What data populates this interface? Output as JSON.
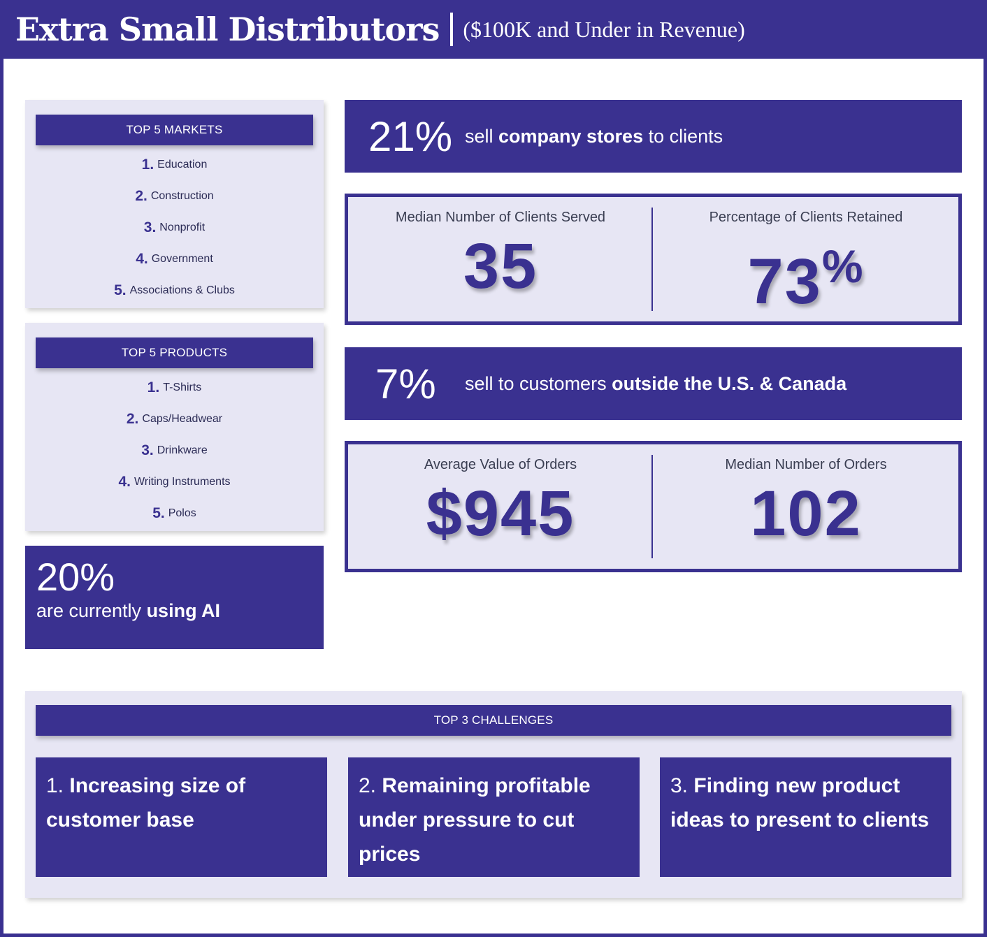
{
  "header": {
    "title": "Extra Small Distributors",
    "subtitle": "($100K and Under in Revenue)"
  },
  "markets": {
    "heading": "TOP 5 MARKETS",
    "items": [
      {
        "num": "1.",
        "label": "Education"
      },
      {
        "num": "2.",
        "label": "Construction"
      },
      {
        "num": "3.",
        "label": "Nonprofit"
      },
      {
        "num": "4.",
        "label": "Government"
      },
      {
        "num": "5.",
        "label": "Associations & Clubs"
      }
    ]
  },
  "products": {
    "heading": "TOP 5 PRODUCTS",
    "items": [
      {
        "num": "1.",
        "label": "T-Shirts"
      },
      {
        "num": "2.",
        "label": "Caps/Headwear"
      },
      {
        "num": "3.",
        "label": "Drinkware"
      },
      {
        "num": "4.",
        "label": "Writing Instruments"
      },
      {
        "num": "5.",
        "label": "Polos"
      }
    ]
  },
  "ai": {
    "percent": "20%",
    "text_pre": "are currently ",
    "text_bold": "using AI"
  },
  "company_stores": {
    "percent": "21%",
    "text_pre": "sell ",
    "text_bold": "company stores",
    "text_post": " to clients"
  },
  "clients": {
    "served_label": "Median Number of Clients Served",
    "served_value": "35",
    "retained_label": "Percentage of Clients Retained",
    "retained_value": "73",
    "retained_unit": "%"
  },
  "international": {
    "percent": "7%",
    "text_pre": "sell to customers ",
    "text_bold": "outside the U.S. & Canada"
  },
  "orders": {
    "avg_label": "Average Value of Orders",
    "avg_value": "$945",
    "median_label": "Median Number of Orders",
    "median_value": "102"
  },
  "challenges": {
    "heading": "TOP 3 CHALLENGES",
    "items": [
      {
        "num": "1.",
        "text": "Increasing size of customer base"
      },
      {
        "num": "2.",
        "text": "Remaining profitable under pressure to cut prices"
      },
      {
        "num": "3.",
        "text": "Finding new product ideas to present to clients"
      }
    ]
  }
}
